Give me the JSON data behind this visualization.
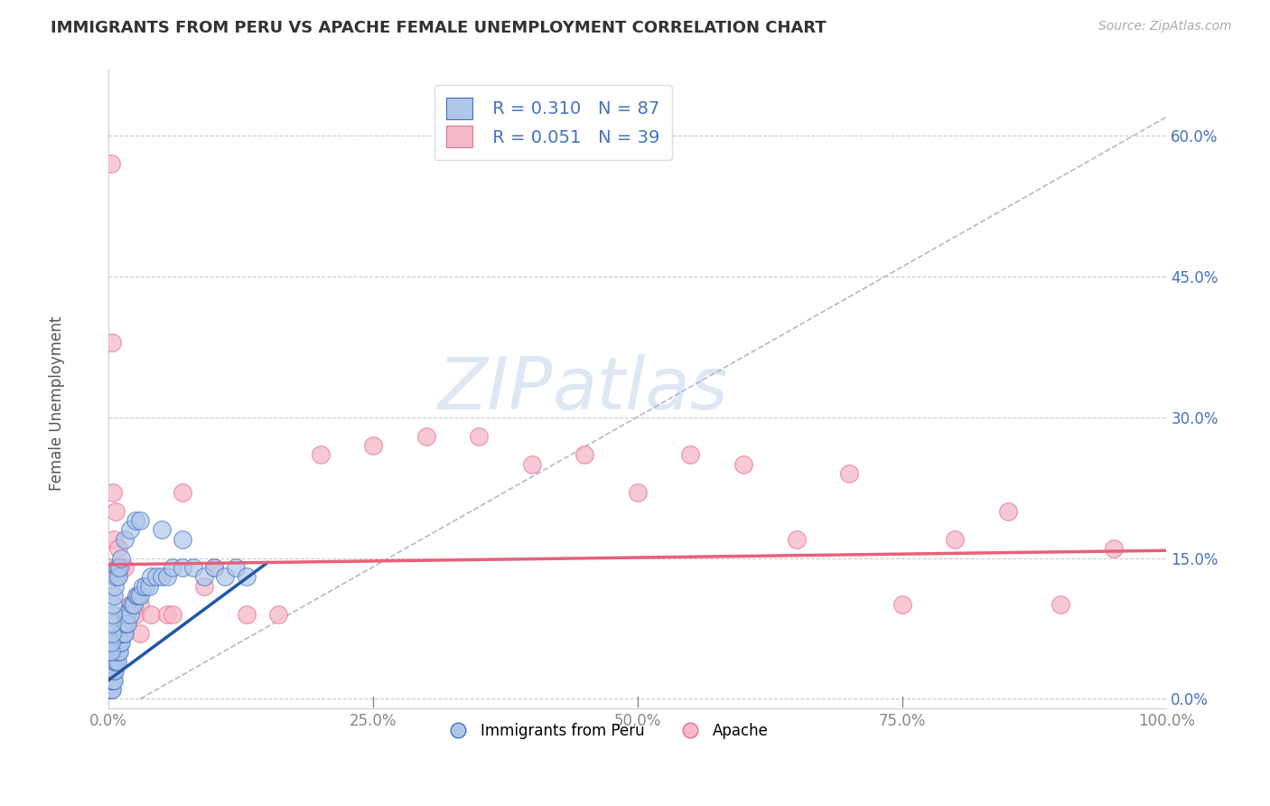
{
  "title": "IMMIGRANTS FROM PERU VS APACHE FEMALE UNEMPLOYMENT CORRELATION CHART",
  "source": "Source: ZipAtlas.com",
  "ylabel": "Female Unemployment",
  "xlim": [
    0,
    1.0
  ],
  "ylim": [
    -0.01,
    0.67
  ],
  "xticks": [
    0.0,
    0.25,
    0.5,
    0.75,
    1.0
  ],
  "xtick_labels": [
    "0.0%",
    "25.0%",
    "50.0%",
    "75.0%",
    "100.0%"
  ],
  "yticks": [
    0.0,
    0.15,
    0.3,
    0.45,
    0.6
  ],
  "ytick_labels": [
    "0.0%",
    "15.0%",
    "30.0%",
    "45.0%",
    "60.0%"
  ],
  "legend_r1": "R = 0.310",
  "legend_n1": "N = 87",
  "legend_r2": "R = 0.051",
  "legend_n2": "N = 39",
  "blue_color": "#aec6e8",
  "pink_color": "#f5b8c8",
  "blue_edge_color": "#4472c4",
  "pink_edge_color": "#e87098",
  "blue_line_color": "#2255aa",
  "pink_line_color": "#e8607a",
  "watermark_zip": "ZIP",
  "watermark_atlas": "atlas",
  "blue_x": [
    0.001,
    0.001,
    0.001,
    0.001,
    0.002,
    0.002,
    0.002,
    0.002,
    0.003,
    0.003,
    0.003,
    0.003,
    0.003,
    0.004,
    0.004,
    0.004,
    0.004,
    0.005,
    0.005,
    0.005,
    0.005,
    0.006,
    0.006,
    0.006,
    0.007,
    0.007,
    0.007,
    0.008,
    0.008,
    0.008,
    0.009,
    0.009,
    0.01,
    0.01,
    0.011,
    0.011,
    0.012,
    0.012,
    0.013,
    0.014,
    0.015,
    0.015,
    0.016,
    0.017,
    0.018,
    0.02,
    0.022,
    0.024,
    0.026,
    0.028,
    0.03,
    0.032,
    0.035,
    0.038,
    0.04,
    0.045,
    0.05,
    0.055,
    0.06,
    0.07,
    0.08,
    0.09,
    0.1,
    0.11,
    0.12,
    0.13,
    0.001,
    0.001,
    0.002,
    0.002,
    0.003,
    0.003,
    0.004,
    0.004,
    0.005,
    0.006,
    0.007,
    0.008,
    0.009,
    0.01,
    0.012,
    0.015,
    0.02,
    0.025,
    0.03,
    0.05,
    0.07
  ],
  "blue_y": [
    0.01,
    0.02,
    0.03,
    0.04,
    0.01,
    0.02,
    0.03,
    0.04,
    0.01,
    0.02,
    0.03,
    0.04,
    0.05,
    0.02,
    0.03,
    0.04,
    0.05,
    0.02,
    0.03,
    0.04,
    0.05,
    0.03,
    0.04,
    0.05,
    0.04,
    0.05,
    0.06,
    0.04,
    0.05,
    0.06,
    0.05,
    0.06,
    0.05,
    0.06,
    0.06,
    0.07,
    0.06,
    0.07,
    0.07,
    0.07,
    0.07,
    0.08,
    0.08,
    0.09,
    0.08,
    0.09,
    0.1,
    0.1,
    0.11,
    0.11,
    0.11,
    0.12,
    0.12,
    0.12,
    0.13,
    0.13,
    0.13,
    0.13,
    0.14,
    0.14,
    0.14,
    0.13,
    0.14,
    0.13,
    0.14,
    0.13,
    0.05,
    0.06,
    0.05,
    0.06,
    0.07,
    0.08,
    0.09,
    0.1,
    0.11,
    0.12,
    0.13,
    0.14,
    0.13,
    0.14,
    0.15,
    0.17,
    0.18,
    0.19,
    0.19,
    0.18,
    0.17
  ],
  "pink_x": [
    0.002,
    0.003,
    0.004,
    0.005,
    0.007,
    0.009,
    0.012,
    0.015,
    0.02,
    0.025,
    0.03,
    0.04,
    0.055,
    0.07,
    0.1,
    0.13,
    0.16,
    0.2,
    0.25,
    0.3,
    0.35,
    0.4,
    0.45,
    0.5,
    0.55,
    0.6,
    0.65,
    0.7,
    0.75,
    0.8,
    0.85,
    0.9,
    0.95,
    0.003,
    0.008,
    0.015,
    0.03,
    0.06,
    0.09
  ],
  "pink_y": [
    0.57,
    0.38,
    0.22,
    0.17,
    0.2,
    0.16,
    0.14,
    0.14,
    0.1,
    0.09,
    0.1,
    0.09,
    0.09,
    0.22,
    0.14,
    0.09,
    0.09,
    0.26,
    0.27,
    0.28,
    0.28,
    0.25,
    0.26,
    0.22,
    0.26,
    0.25,
    0.17,
    0.24,
    0.1,
    0.17,
    0.2,
    0.1,
    0.16,
    0.14,
    0.13,
    0.09,
    0.07,
    0.09,
    0.12
  ],
  "blue_trend_x": [
    0.0,
    0.15
  ],
  "blue_trend_y": [
    0.02,
    0.145
  ],
  "pink_trend_x": [
    0.0,
    1.0
  ],
  "pink_trend_y": [
    0.143,
    0.158
  ],
  "dash_line_x": [
    0.03,
    1.0
  ],
  "dash_line_y": [
    0.0,
    0.62
  ]
}
